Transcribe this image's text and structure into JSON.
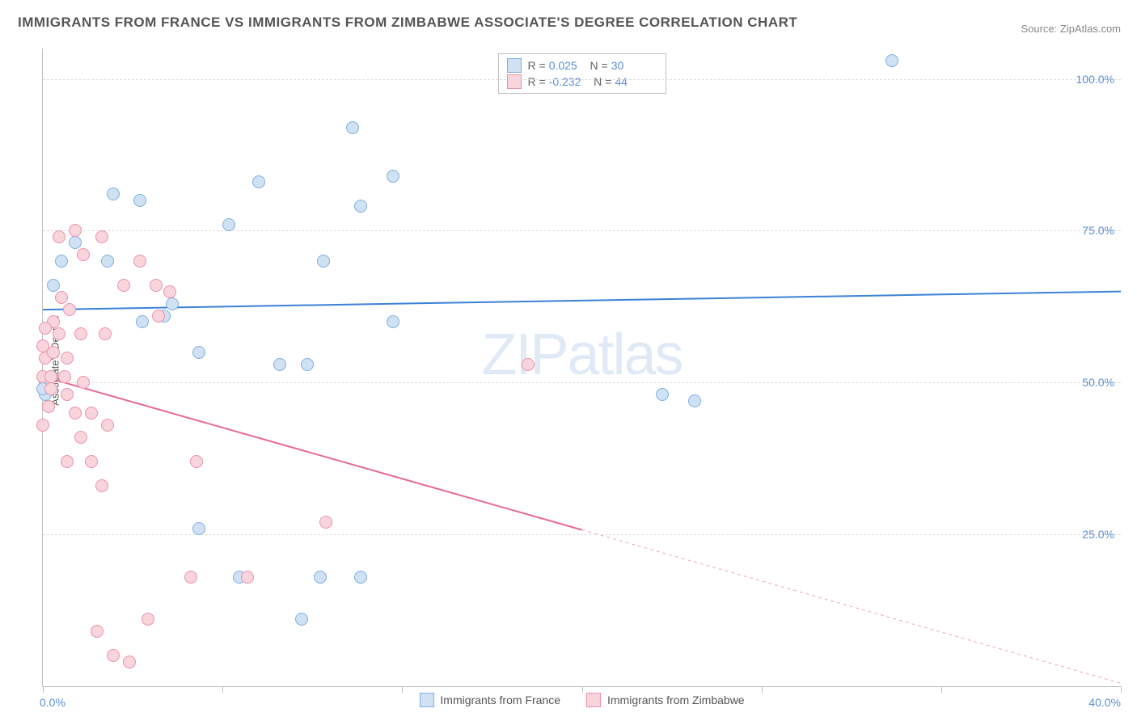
{
  "title": "IMMIGRANTS FROM FRANCE VS IMMIGRANTS FROM ZIMBABWE ASSOCIATE'S DEGREE CORRELATION CHART",
  "source": "Source: ZipAtlas.com",
  "ylabel": "Associate's Degree",
  "watermark_a": "ZIP",
  "watermark_b": "atlas",
  "chart": {
    "type": "scatter",
    "background_color": "#ffffff",
    "grid_color": "#dddddd",
    "axis_color": "#c0c0c0",
    "xlim": [
      0,
      40
    ],
    "ylim": [
      0,
      105
    ],
    "yticks": [
      25,
      50,
      75,
      100
    ],
    "ytick_labels": [
      "25.0%",
      "50.0%",
      "75.0%",
      "100.0%"
    ],
    "xticks": [
      0,
      6.67,
      13.33,
      20,
      26.67,
      33.33,
      40
    ],
    "xtick_labels_shown": {
      "0": "0.0%",
      "40": "40.0%"
    },
    "tick_label_color": "#5b8fd6",
    "label_fontsize": 14,
    "series": [
      {
        "name": "Immigrants from France",
        "color_fill": "#cfe1f3",
        "color_stroke": "#7fb0e0",
        "marker_size": 16,
        "trend": {
          "y_at_x0": 62,
          "y_at_xmax": 65,
          "color": "#3b82d6",
          "width": 2,
          "solid_until_x": 40
        },
        "R": "0.025",
        "N": "30",
        "points": [
          [
            31.5,
            103
          ],
          [
            11.5,
            92
          ],
          [
            8.0,
            83
          ],
          [
            13.0,
            84
          ],
          [
            11.8,
            79
          ],
          [
            2.6,
            81
          ],
          [
            3.6,
            80
          ],
          [
            1.2,
            73
          ],
          [
            0.7,
            70
          ],
          [
            2.4,
            70
          ],
          [
            10.4,
            70
          ],
          [
            6.9,
            76
          ],
          [
            0.4,
            66
          ],
          [
            4.8,
            63
          ],
          [
            4.5,
            61
          ],
          [
            3.7,
            60
          ],
          [
            5.8,
            55
          ],
          [
            8.8,
            53
          ],
          [
            9.8,
            53
          ],
          [
            0.1,
            50
          ],
          [
            23.0,
            48
          ],
          [
            24.2,
            47
          ],
          [
            0.1,
            48
          ],
          [
            7.3,
            18
          ],
          [
            10.3,
            18
          ],
          [
            11.8,
            18
          ],
          [
            5.8,
            26
          ],
          [
            9.6,
            11
          ],
          [
            0.0,
            49
          ],
          [
            13.0,
            60
          ]
        ]
      },
      {
        "name": "Immigrants from Zimbabwe",
        "color_fill": "#f8d4dd",
        "color_stroke": "#ec92ac",
        "marker_size": 16,
        "trend": {
          "y_at_x0": 51,
          "y_at_xmax": 0.5,
          "color": "#e76a94",
          "width": 2,
          "solid_until_x": 20
        },
        "R": "-0.232",
        "N": "44",
        "points": [
          [
            0.6,
            74
          ],
          [
            1.2,
            75
          ],
          [
            2.2,
            74
          ],
          [
            1.5,
            71
          ],
          [
            3.0,
            66
          ],
          [
            4.2,
            66
          ],
          [
            4.7,
            65
          ],
          [
            4.3,
            61
          ],
          [
            0.4,
            60
          ],
          [
            0.6,
            58
          ],
          [
            1.4,
            58
          ],
          [
            2.3,
            58
          ],
          [
            0.1,
            54
          ],
          [
            0.9,
            54
          ],
          [
            0.0,
            51
          ],
          [
            0.3,
            51
          ],
          [
            0.8,
            51
          ],
          [
            0.3,
            49
          ],
          [
            0.9,
            48
          ],
          [
            1.5,
            50
          ],
          [
            0.2,
            46
          ],
          [
            1.2,
            45
          ],
          [
            1.8,
            45
          ],
          [
            2.4,
            43
          ],
          [
            0.0,
            43
          ],
          [
            1.4,
            41
          ],
          [
            0.9,
            37
          ],
          [
            1.8,
            37
          ],
          [
            5.7,
            37
          ],
          [
            2.2,
            33
          ],
          [
            10.5,
            27
          ],
          [
            7.6,
            18
          ],
          [
            5.5,
            18
          ],
          [
            3.9,
            11
          ],
          [
            2.0,
            9
          ],
          [
            2.6,
            5
          ],
          [
            3.2,
            4
          ],
          [
            18.0,
            53
          ],
          [
            0.0,
            56
          ],
          [
            0.4,
            55
          ],
          [
            1.0,
            62
          ],
          [
            0.7,
            64
          ],
          [
            3.6,
            70
          ],
          [
            0.1,
            59
          ]
        ]
      }
    ],
    "legend_top_labels": {
      "R": "R =",
      "N": "N ="
    },
    "legend_bottom": [
      "Immigrants from France",
      "Immigrants from Zimbabwe"
    ]
  }
}
